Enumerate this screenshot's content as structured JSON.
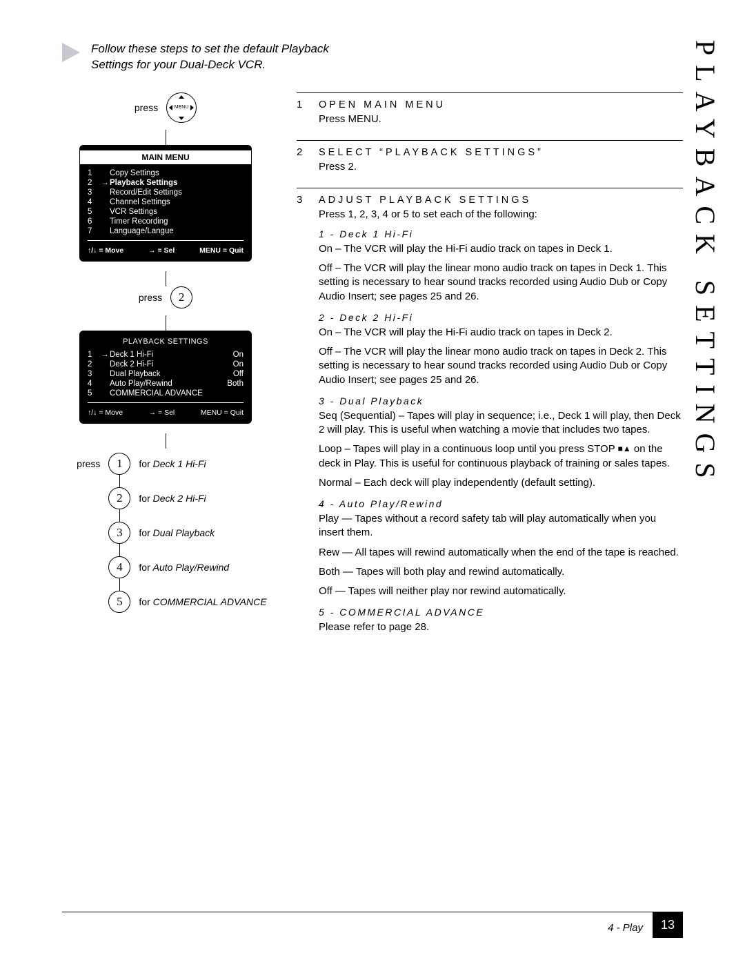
{
  "sideTitle": "PLAYBACK SETTINGS",
  "intro": "Follow these steps to set the default Playback Settings for your Dual-Deck VCR.",
  "pressLabel": "press",
  "menuButtonLabel": "MENU",
  "mainMenu": {
    "title": "MAIN MENU",
    "items": [
      {
        "n": "1",
        "label": "Copy Settings",
        "selected": false
      },
      {
        "n": "2",
        "label": "Playback Settings",
        "selected": true
      },
      {
        "n": "3",
        "label": "Record/Edit Settings",
        "selected": false
      },
      {
        "n": "4",
        "label": "Channel Settings",
        "selected": false
      },
      {
        "n": "5",
        "label": "VCR Settings",
        "selected": false
      },
      {
        "n": "6",
        "label": "Timer Recording",
        "selected": false
      },
      {
        "n": "7",
        "label": "Language/Langue",
        "selected": false
      }
    ],
    "footerMove": "↑/↓ = Move",
    "footerSel": "→ = Sel",
    "footerQuit": "MENU = Quit"
  },
  "pressNum2": "2",
  "playbackMenu": {
    "title": "PLAYBACK SETTINGS",
    "items": [
      {
        "n": "1",
        "label": "Deck 1 Hi-Fi",
        "val": "On",
        "selected": true
      },
      {
        "n": "2",
        "label": "Deck 2 Hi-Fi",
        "val": "On",
        "selected": false
      },
      {
        "n": "3",
        "label": "Dual Playback",
        "val": "Off",
        "selected": false
      },
      {
        "n": "4",
        "label": "Auto Play/Rewind",
        "val": "Both",
        "selected": false
      },
      {
        "n": "5",
        "label": "COMMERCIAL ADVANCE",
        "val": "",
        "selected": false
      }
    ],
    "footerMove": "↑/↓ = Move",
    "footerSel": "→ = Sel",
    "footerQuit": "MENU = Quit"
  },
  "seq": [
    {
      "lead": "press",
      "num": "1",
      "for": "for ",
      "desc": "Deck 1 Hi-Fi"
    },
    {
      "lead": "",
      "num": "2",
      "for": "for ",
      "desc": "Deck 2 Hi-Fi"
    },
    {
      "lead": "",
      "num": "3",
      "for": "for ",
      "desc": "Dual Playback"
    },
    {
      "lead": "",
      "num": "4",
      "for": "for ",
      "desc": "Auto Play/Rewind"
    },
    {
      "lead": "",
      "num": "5",
      "for": "for ",
      "desc": "COMMERCIAL ADVANCE"
    }
  ],
  "steps": {
    "s1": {
      "num": "1",
      "title": "OPEN MAIN MENU",
      "body": "Press MENU."
    },
    "s2": {
      "num": "2",
      "title": "SELECT “PLAYBACK SETTINGS”",
      "body": "Press 2."
    },
    "s3": {
      "num": "3",
      "title": "ADJUST PLAYBACK SETTINGS",
      "body": "Press 1, 2, 3, 4 or 5 to set each of the following:"
    }
  },
  "subs": {
    "d1": {
      "title": "1 - Deck 1 Hi-Fi",
      "p1": "On – The VCR will play the Hi-Fi audio track on tapes in Deck 1.",
      "p2": "Off – The VCR will play the linear mono audio track on tapes in Deck 1. This setting is necessary to hear sound tracks recorded using Audio Dub or Copy Audio Insert; see pages 25 and 26."
    },
    "d2": {
      "title": "2 - Deck 2 Hi-Fi",
      "p1": "On – The VCR will play the Hi-Fi audio track on tapes in Deck 2.",
      "p2": "Off – The VCR will play the linear mono audio track on tapes in Deck 2. This setting is necessary to hear sound tracks recorded using Audio Dub or Copy Audio Insert; see pages 25 and 26."
    },
    "d3": {
      "title": "3 - Dual Playback",
      "p1": "Seq (Sequential) – Tapes will play in sequence; i.e., Deck 1 will play, then Deck 2 will play. This is useful when watching a movie that includes two tapes.",
      "p2a": "Loop – Tapes will play in a continuous loop until you press STOP ",
      "p2b": " on the deck in Play. This is useful for continuous playback of training or sales tapes.",
      "p3": "Normal – Each deck will play independently (default setting)."
    },
    "d4": {
      "title": "4 - Auto Play/Rewind",
      "p1": "Play — Tapes without a record safety tab will play automatically when you insert them.",
      "p2": "Rew — All tapes will rewind automatically when the end of the tape is reached.",
      "p3": "Both — Tapes will both play and rewind automatically.",
      "p4": "Off — Tapes will neither play nor rewind automatically."
    },
    "d5": {
      "title": "5 - COMMERCIAL ADVANCE",
      "p1": "Please refer to page 28."
    }
  },
  "footer": {
    "section": "4 - Play",
    "page": "13"
  }
}
